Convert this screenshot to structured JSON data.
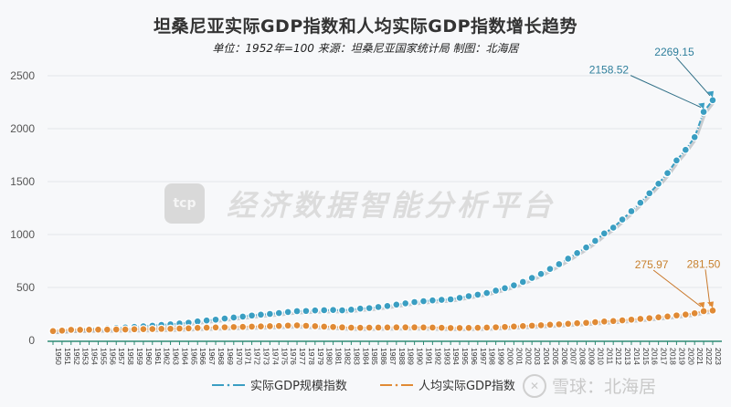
{
  "header": {
    "title": "坦桑尼亚实际GDP指数和人均实际GDP指数增长趋势",
    "subtitle": "单位：1952年=100  来源：坦桑尼亚国家统计局  制图：北海居"
  },
  "watermark": {
    "logo_text": "tcp",
    "center_text": "经济数据智能分析平台",
    "credit_icon": "snowball-logo-icon",
    "credit_text": "雪球：北海居"
  },
  "legend": {
    "items": [
      {
        "label": "实际GDP规模指数",
        "color": "#3a9ec2"
      },
      {
        "label": "人均实际GDP指数",
        "color": "#e08a35"
      }
    ]
  },
  "annotations": [
    {
      "series": 0,
      "year": 2022,
      "text": "2158.52"
    },
    {
      "series": 0,
      "year": 2023,
      "text": "2269.15"
    },
    {
      "series": 1,
      "year": 2022,
      "text": "275.97"
    },
    {
      "series": 1,
      "year": 2023,
      "text": "281.50"
    }
  ],
  "chart_data": {
    "type": "line",
    "title": "坦桑尼亚实际GDP指数和人均实际GDP指数增长趋势",
    "subtitle": "单位：1952年=100 来源：坦桑尼亚国家统计局 制图：北海居",
    "xlabel": "",
    "ylabel": "",
    "ylim": [
      0,
      2500
    ],
    "yticks": [
      0,
      500,
      1000,
      1500,
      2000,
      2500
    ],
    "grid": true,
    "legend_position": "bottom",
    "x": [
      1950,
      1951,
      1952,
      1953,
      1954,
      1955,
      1956,
      1957,
      1958,
      1959,
      1960,
      1961,
      1962,
      1963,
      1964,
      1965,
      1966,
      1967,
      1968,
      1969,
      1970,
      1971,
      1972,
      1973,
      1974,
      1975,
      1976,
      1977,
      1978,
      1979,
      1980,
      1981,
      1982,
      1983,
      1984,
      1985,
      1986,
      1987,
      1988,
      1989,
      1990,
      1991,
      1992,
      1993,
      1994,
      1995,
      1996,
      1997,
      1998,
      1999,
      2000,
      2001,
      2002,
      2003,
      2004,
      2005,
      2006,
      2007,
      2008,
      2009,
      2010,
      2011,
      2012,
      2013,
      2014,
      2015,
      2016,
      2017,
      2018,
      2019,
      2020,
      2021,
      2022,
      2023
    ],
    "series": [
      {
        "name": "实际GDP规模指数",
        "color": "#3a9ec2",
        "values": [
          90,
          95,
          100,
          103,
          107,
          111,
          114,
          118,
          122,
          128,
          133,
          139,
          146,
          152,
          160,
          167,
          179,
          188,
          196,
          206,
          216,
          225,
          235,
          243,
          250,
          258,
          268,
          276,
          278,
          283,
          285,
          287,
          284,
          290,
          300,
          305,
          315,
          325,
          338,
          350,
          362,
          370,
          378,
          383,
          388,
          402,
          418,
          432,
          448,
          470,
          493,
          520,
          552,
          590,
          628,
          675,
          720,
          772,
          825,
          878,
          940,
          1010,
          1065,
          1142,
          1220,
          1300,
          1390,
          1480,
          1580,
          1700,
          1800,
          1920,
          2158.52,
          2269.15
        ]
      },
      {
        "name": "人均实际GDP指数",
        "color": "#e08a35",
        "values": [
          88,
          92,
          100,
          100,
          101,
          102,
          102,
          103,
          103,
          105,
          106,
          107,
          109,
          110,
          112,
          114,
          118,
          120,
          122,
          124,
          126,
          128,
          130,
          132,
          134,
          136,
          140,
          142,
          138,
          134,
          130,
          127,
          123,
          120,
          119,
          120,
          121,
          122,
          123,
          123,
          123,
          122,
          121,
          119,
          117,
          117,
          118,
          119,
          121,
          124,
          127,
          131,
          135,
          139,
          143,
          148,
          152,
          157,
          162,
          166,
          172,
          178,
          183,
          189,
          196,
          203,
          210,
          218,
          226,
          236,
          244,
          256,
          275.97,
          281.5
        ]
      }
    ]
  }
}
